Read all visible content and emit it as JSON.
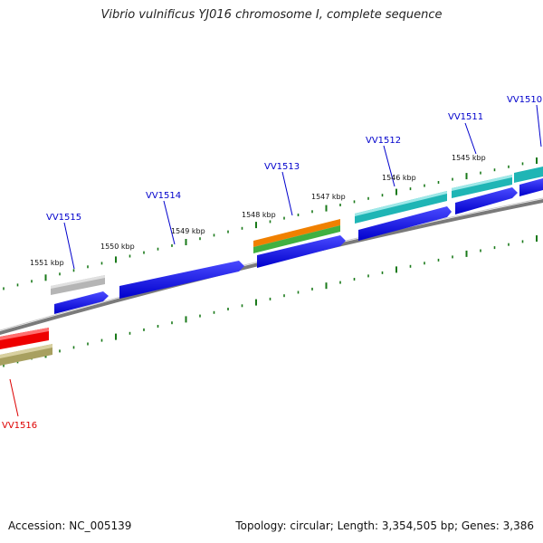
{
  "title": "Vibrio vulnificus YJ016 chromosome I, complete sequence",
  "footer": {
    "accession": "Accession: NC_005139",
    "summary": "Topology: circular; Length: 3,354,505 bp; Genes: 3,386"
  },
  "scale_labels": [
    "1545 kbp",
    "1546 kbp",
    "1547 kbp",
    "1548 kbp",
    "1549 kbp",
    "1550 kbp",
    "1551 kbp"
  ],
  "gene_labels": [
    {
      "text": "VV1510",
      "color": "#0000cc"
    },
    {
      "text": "VV1511",
      "color": "#0000cc"
    },
    {
      "text": "VV1512",
      "color": "#0000cc"
    },
    {
      "text": "VV1513",
      "color": "#0000cc"
    },
    {
      "text": "VV1514",
      "color": "#0000cc"
    },
    {
      "text": "VV1515",
      "color": "#0000cc"
    },
    {
      "text": "VV1516",
      "color": "#dd0000"
    }
  ],
  "colors": {
    "tick": "#1a7a1a",
    "backbone": "#808080",
    "cds": "#0000ee",
    "gene_gray": "#b5b5b5",
    "gene_teal": "#1fb5b5",
    "gene_orange": "#f08000",
    "gene_green": "#40b040",
    "gene_red": "#ee0000",
    "gene_olive": "#a8a060"
  }
}
